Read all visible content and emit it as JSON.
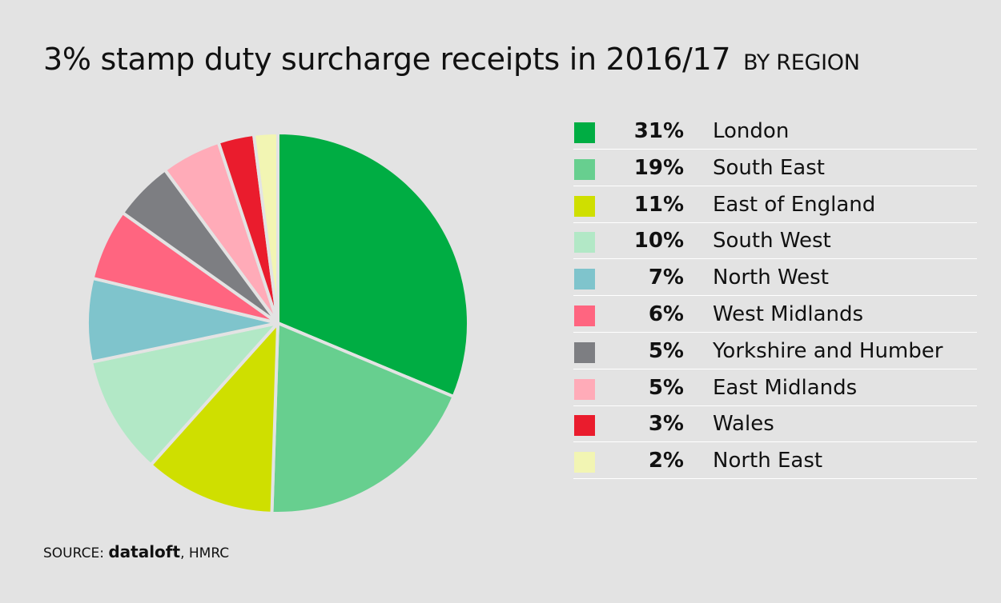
{
  "title": {
    "main": "3% stamp duty surcharge receipts in 2016/17",
    "sub": "BY REGION"
  },
  "source": {
    "prefix": "SOURCE:",
    "brand": "dataloft",
    "suffix": ", HMRC"
  },
  "chart_data": {
    "type": "pie",
    "title": "3% stamp duty surcharge receipts in 2016/17 BY REGION",
    "legend_position": "right",
    "slices": [
      {
        "label": "London",
        "value": 31,
        "display": "31%",
        "color": "#00ad43"
      },
      {
        "label": "South East",
        "value": 19,
        "display": "19%",
        "color": "#67cf8f"
      },
      {
        "label": "East of England",
        "value": 11,
        "display": "11%",
        "color": "#cfdf00"
      },
      {
        "label": "South West",
        "value": 10,
        "display": "10%",
        "color": "#b2e8c6"
      },
      {
        "label": "North West",
        "value": 7,
        "display": "7%",
        "color": "#7fc4cc"
      },
      {
        "label": "West Midlands",
        "value": 6,
        "display": "6%",
        "color": "#ff6580"
      },
      {
        "label": "Yorkshire and Humber",
        "value": 5,
        "display": "5%",
        "color": "#7d7e82"
      },
      {
        "label": "East Midlands",
        "value": 5,
        "display": "5%",
        "color": "#ffabb8"
      },
      {
        "label": "Wales",
        "value": 3,
        "display": "3%",
        "color": "#ea1c2d"
      },
      {
        "label": "North East",
        "value": 2,
        "display": "2%",
        "color": "#f2f5b3"
      }
    ]
  }
}
